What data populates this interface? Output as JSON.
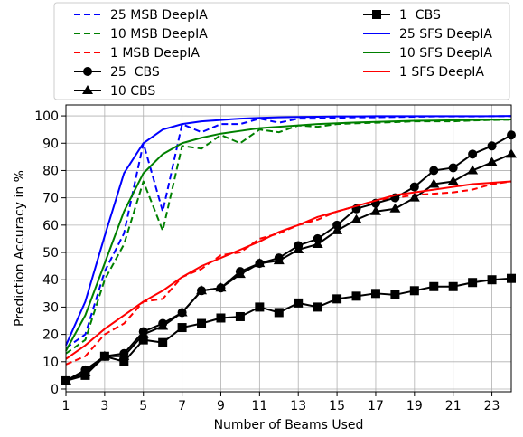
{
  "chart_data": {
    "type": "line",
    "title": "",
    "xlabel": "Number of Beams Used",
    "ylabel": "Prediction Accuracy in %",
    "xlim": [
      1,
      24
    ],
    "ylim": [
      -1,
      104
    ],
    "grid": true,
    "legend_placement": "top",
    "x_ticks": [
      1,
      3,
      5,
      7,
      9,
      11,
      13,
      15,
      17,
      19,
      21,
      23
    ],
    "y_ticks": [
      0,
      10,
      20,
      30,
      40,
      50,
      60,
      70,
      80,
      90,
      100
    ],
    "x_tick_labels": [
      "1",
      "3",
      "5",
      "7",
      "9",
      "11",
      "13",
      "15",
      "17",
      "19",
      "21",
      "23"
    ],
    "y_tick_labels": [
      "0",
      "10",
      "20",
      "30",
      "40",
      "50",
      "60",
      "70",
      "80",
      "90",
      "100"
    ],
    "legend": [
      [
        "25 MSB DeepIA",
        "1  CBS"
      ],
      [
        "10 MSB DeepIA",
        "25 SFS DeepIA"
      ],
      [
        "1 MSB DeepIA",
        "10 SFS DeepIA"
      ],
      [
        "25  CBS",
        "1 SFS DeepIA"
      ],
      [
        "10 CBS",
        ""
      ]
    ],
    "series": [
      {
        "name": "25 MSB DeepIA",
        "color": "#0000ff",
        "dash": "dashed",
        "marker": "none",
        "x": [
          1,
          2,
          3,
          4,
          5,
          6,
          7,
          8,
          9,
          10,
          11,
          12,
          13,
          14,
          15,
          16,
          17,
          18,
          19,
          20,
          21,
          22,
          23,
          24
        ],
        "y": [
          15,
          20,
          43,
          57,
          90,
          65,
          97,
          94,
          97,
          97,
          99,
          97.5,
          99,
          99,
          99.3,
          99.5,
          99.5,
          99.6,
          99.7,
          99.8,
          99.8,
          99.8,
          99.9,
          99.9
        ]
      },
      {
        "name": "10 MSB DeepIA",
        "color": "#008000",
        "dash": "dashed",
        "marker": "none",
        "x": [
          1,
          2,
          3,
          4,
          5,
          6,
          7,
          8,
          9,
          10,
          11,
          12,
          13,
          14,
          15,
          16,
          17,
          18,
          19,
          20,
          21,
          22,
          23,
          24
        ],
        "y": [
          13,
          18,
          40,
          53,
          76,
          58,
          89,
          88,
          93,
          90,
          95,
          94,
          96.5,
          96,
          97,
          97.3,
          97.5,
          97.7,
          98,
          98,
          98,
          98.3,
          98.5,
          98.6
        ]
      },
      {
        "name": "1 MSB DeepIA",
        "color": "#ff0000",
        "dash": "dashed",
        "marker": "none",
        "x": [
          1,
          2,
          3,
          4,
          5,
          6,
          7,
          8,
          9,
          10,
          11,
          12,
          13,
          14,
          15,
          16,
          17,
          18,
          19,
          20,
          21,
          22,
          23,
          24
        ],
        "y": [
          9,
          12,
          20,
          24,
          32,
          33,
          41,
          44,
          49,
          50,
          55,
          57,
          60,
          62,
          65,
          67,
          69,
          70,
          71,
          71.5,
          72,
          73,
          75,
          76
        ]
      },
      {
        "name": "25  CBS",
        "color": "#000000",
        "dash": "solid",
        "marker": "circle",
        "x": [
          1,
          2,
          3,
          4,
          5,
          6,
          7,
          8,
          9,
          10,
          11,
          12,
          13,
          14,
          15,
          16,
          17,
          18,
          19,
          20,
          21,
          22,
          23,
          24
        ],
        "y": [
          3,
          7,
          12,
          13,
          21,
          24,
          28,
          36,
          37,
          43,
          46,
          48,
          52.5,
          55,
          60,
          66,
          68,
          70,
          74,
          80,
          81,
          86,
          89,
          93
        ]
      },
      {
        "name": "10 CBS",
        "color": "#000000",
        "dash": "solid",
        "marker": "triangle",
        "x": [
          1,
          2,
          3,
          4,
          5,
          6,
          7,
          8,
          9,
          10,
          11,
          12,
          13,
          14,
          15,
          16,
          17,
          18,
          19,
          20,
          21,
          22,
          23,
          24
        ],
        "y": [
          3,
          6,
          12,
          12,
          20,
          23,
          28,
          36,
          37,
          42,
          46,
          47,
          51,
          53,
          58,
          62,
          65,
          66,
          70,
          75,
          76,
          80,
          83,
          86
        ]
      },
      {
        "name": "1  CBS",
        "color": "#000000",
        "dash": "solid",
        "marker": "square",
        "x": [
          1,
          2,
          3,
          4,
          5,
          6,
          7,
          8,
          9,
          10,
          11,
          12,
          13,
          14,
          15,
          16,
          17,
          18,
          19,
          20,
          21,
          22,
          23,
          24
        ],
        "y": [
          3,
          5,
          12,
          10,
          18,
          17,
          22.5,
          24,
          26,
          26.5,
          30,
          28,
          31.5,
          30,
          33,
          34,
          35,
          34.5,
          36,
          37.5,
          37.5,
          39,
          40,
          40.5
        ]
      },
      {
        "name": "25 SFS DeepIA",
        "color": "#0000ff",
        "dash": "solid",
        "marker": "none",
        "x": [
          1,
          2,
          3,
          4,
          5,
          6,
          7,
          8,
          9,
          10,
          11,
          12,
          13,
          14,
          15,
          16,
          17,
          18,
          19,
          20,
          21,
          22,
          23,
          24
        ],
        "y": [
          16,
          32,
          56,
          79,
          90,
          95,
          97,
          98,
          98.5,
          99,
          99.3,
          99.5,
          99.6,
          99.7,
          99.8,
          99.8,
          99.9,
          99.9,
          99.9,
          99.9,
          99.9,
          99.9,
          99.9,
          100
        ]
      },
      {
        "name": "10 SFS DeepIA",
        "color": "#008000",
        "dash": "solid",
        "marker": "none",
        "x": [
          1,
          2,
          3,
          4,
          5,
          6,
          7,
          8,
          9,
          10,
          11,
          12,
          13,
          14,
          15,
          16,
          17,
          18,
          19,
          20,
          21,
          22,
          23,
          24
        ],
        "y": [
          14,
          27,
          46,
          65,
          79,
          86,
          90,
          92,
          93.5,
          94.5,
          95.5,
          96,
          96.5,
          97,
          97.3,
          97.6,
          97.8,
          98,
          98.2,
          98.3,
          98.4,
          98.5,
          98.6,
          98.7
        ]
      },
      {
        "name": "1 SFS DeepIA",
        "color": "#ff0000",
        "dash": "solid",
        "marker": "none",
        "x": [
          1,
          2,
          3,
          4,
          5,
          6,
          7,
          8,
          9,
          10,
          11,
          12,
          13,
          14,
          15,
          16,
          17,
          18,
          19,
          20,
          21,
          22,
          23,
          24
        ],
        "y": [
          11,
          16,
          22,
          27,
          32,
          36,
          41,
          45,
          48,
          51,
          54,
          57.5,
          60,
          63,
          65,
          67,
          69,
          71,
          72,
          73,
          74,
          75,
          75.5,
          76
        ]
      }
    ]
  }
}
